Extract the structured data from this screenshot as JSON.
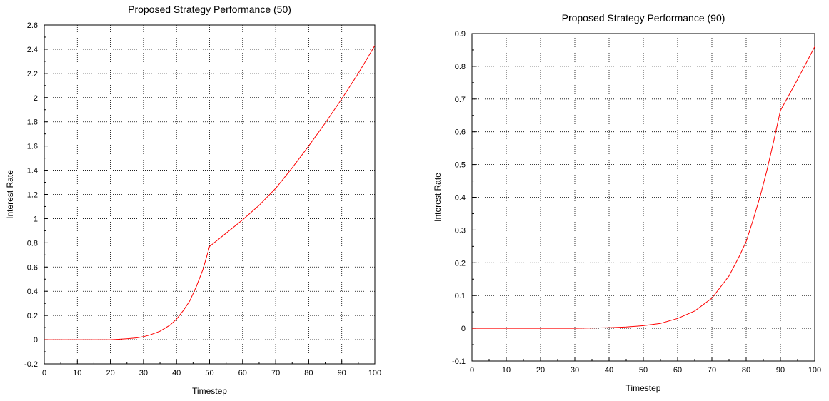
{
  "chart_data": [
    {
      "type": "line",
      "title": "Proposed Strategy Performance (50)",
      "xlabel": "Timestep",
      "ylabel": "Interest Rate",
      "xlim": [
        0,
        100
      ],
      "ylim": [
        -0.2,
        2.6
      ],
      "xticks": [
        0,
        10,
        20,
        30,
        40,
        50,
        60,
        70,
        80,
        90,
        100
      ],
      "yticks": [
        -0.2,
        0,
        0.2,
        0.4,
        0.6,
        0.8,
        1,
        1.2,
        1.4,
        1.6,
        1.8,
        2,
        2.2,
        2.4,
        2.6
      ],
      "xtick_labels": [
        "0",
        "10",
        "20",
        "30",
        "40",
        "50",
        "60",
        "70",
        "80",
        "90",
        "100"
      ],
      "ytick_labels": [
        "-0.2",
        "0",
        "0.2",
        "0.4",
        "0.6",
        "0.8",
        "1",
        "1.2",
        "1.4",
        "1.6",
        "1.8",
        "2",
        "2.2",
        "2.4",
        "2.6"
      ],
      "grid": true,
      "series": [
        {
          "color": "#ff0000",
          "x": [
            0,
            10,
            20,
            22,
            25,
            28,
            30,
            32,
            35,
            38,
            40,
            42,
            44,
            46,
            48,
            50,
            55,
            60,
            65,
            70,
            75,
            80,
            85,
            90,
            95,
            100
          ],
          "y": [
            0,
            0,
            0,
            0.003,
            0.008,
            0.015,
            0.025,
            0.04,
            0.07,
            0.12,
            0.17,
            0.24,
            0.32,
            0.44,
            0.58,
            0.77,
            0.88,
            0.99,
            1.11,
            1.25,
            1.42,
            1.6,
            1.79,
            1.99,
            2.2,
            2.43
          ]
        }
      ]
    },
    {
      "type": "line",
      "title": "Proposed Strategy Performance (90)",
      "xlabel": "Timestep",
      "ylabel": "Interest Rate",
      "xlim": [
        0,
        100
      ],
      "ylim": [
        -0.1,
        0.9
      ],
      "xticks": [
        0,
        10,
        20,
        30,
        40,
        50,
        60,
        70,
        80,
        90,
        100
      ],
      "yticks": [
        -0.1,
        0,
        0.1,
        0.2,
        0.3,
        0.4,
        0.5,
        0.6,
        0.7,
        0.8,
        0.9
      ],
      "xtick_labels": [
        "0",
        "10",
        "20",
        "30",
        "40",
        "50",
        "60",
        "70",
        "80",
        "90",
        "100"
      ],
      "ytick_labels": [
        "-0.1",
        "0",
        "0.1",
        "0.2",
        "0.3",
        "0.4",
        "0.5",
        "0.6",
        "0.7",
        "0.8",
        "0.9"
      ],
      "grid": true,
      "series": [
        {
          "color": "#ff0000",
          "x": [
            0,
            10,
            20,
            30,
            40,
            45,
            50,
            55,
            60,
            65,
            70,
            75,
            78,
            80,
            82,
            84,
            86,
            88,
            90,
            95,
            100
          ],
          "y": [
            0,
            0,
            0,
            0,
            0.002,
            0.004,
            0.008,
            0.015,
            0.03,
            0.053,
            0.092,
            0.16,
            0.22,
            0.265,
            0.33,
            0.4,
            0.48,
            0.57,
            0.665,
            0.76,
            0.86
          ]
        }
      ]
    }
  ]
}
